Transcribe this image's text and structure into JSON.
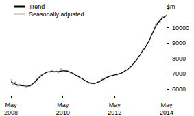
{
  "chart_data": {
    "type": "line",
    "y_label": "$m",
    "categories": [
      "May\n2008",
      null,
      null,
      null,
      null,
      null,
      null,
      null,
      null,
      null,
      null,
      null,
      null,
      null,
      null,
      null,
      null,
      null,
      null,
      null,
      null,
      null,
      null,
      null,
      "May\n2010",
      null,
      null,
      null,
      null,
      null,
      null,
      null,
      null,
      null,
      null,
      null,
      null,
      null,
      null,
      null,
      null,
      null,
      null,
      null,
      null,
      null,
      null,
      null,
      "May\n2012",
      null,
      null,
      null,
      null,
      null,
      null,
      null,
      null,
      null,
      null,
      null,
      null,
      null,
      null,
      null,
      null,
      null,
      null,
      null,
      null,
      null,
      null,
      null,
      "May\n2014"
    ],
    "series": [
      {
        "name": "Trend",
        "color": "#000000",
        "values": [
          6500,
          6420,
          6350,
          6300,
          6270,
          6250,
          6230,
          6220,
          6220,
          6260,
          6350,
          6480,
          6620,
          6760,
          6880,
          6980,
          7060,
          7120,
          7150,
          7160,
          7150,
          7140,
          7150,
          7180,
          7200,
          7200,
          7180,
          7140,
          7080,
          7000,
          6920,
          6840,
          6760,
          6680,
          6600,
          6520,
          6450,
          6400,
          6380,
          6400,
          6450,
          6520,
          6600,
          6680,
          6750,
          6810,
          6860,
          6900,
          6930,
          6960,
          7000,
          7050,
          7120,
          7200,
          7300,
          7420,
          7560,
          7720,
          7900,
          8100,
          8300,
          8500,
          8700,
          8920,
          9180,
          9480,
          9800,
          10100,
          10320,
          10480,
          10600,
          10700,
          10780
        ]
      },
      {
        "name": "Seasonally adjusted",
        "color": "#aaaaaa",
        "values": [
          6650,
          6300,
          6500,
          6200,
          6350,
          6250,
          6300,
          6100,
          6250,
          6200,
          6400,
          6450,
          6700,
          6750,
          6950,
          7000,
          7100,
          7150,
          7100,
          7250,
          7100,
          7200,
          7050,
          7350,
          7250,
          7150,
          7250,
          7100,
          7000,
          7050,
          6850,
          6900,
          6700,
          6750,
          6550,
          6550,
          6400,
          6450,
          6350,
          6400,
          6500,
          6450,
          6700,
          6600,
          6800,
          6750,
          6900,
          6850,
          7000,
          6900,
          7050,
          7000,
          7150,
          7250,
          7250,
          7500,
          7500,
          7800,
          7850,
          8100,
          8250,
          8600,
          8600,
          9000,
          9100,
          9600,
          9700,
          10250,
          10400,
          10350,
          10750,
          10650,
          10850
        ]
      }
    ],
    "ylim": [
      5600,
      11000
    ],
    "yticks": [
      6000,
      7000,
      8000,
      9000,
      10000
    ],
    "grid": false,
    "legend": "top-left"
  }
}
